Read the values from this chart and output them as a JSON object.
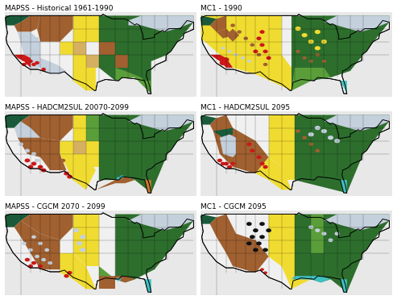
{
  "panels": [
    {
      "title": "MAPSS - Historical 1961-1990",
      "row": 0,
      "col": 0
    },
    {
      "title": "MC1 - 1990",
      "row": 0,
      "col": 1
    },
    {
      "title": "MAPSS - HADCM2SUL 20070-2099",
      "row": 1,
      "col": 0
    },
    {
      "title": "MC1 - HADCM2SUL 2095",
      "row": 1,
      "col": 1
    },
    {
      "title": "MAPSS - CGCM 2070 - 2099",
      "row": 2,
      "col": 0
    },
    {
      "title": "MC1 - CGCM 2095",
      "row": 2,
      "col": 1
    }
  ],
  "background_color": "#ffffff",
  "title_fontsize": 6.5,
  "figsize": [
    4.93,
    3.72
  ],
  "dpi": 100
}
